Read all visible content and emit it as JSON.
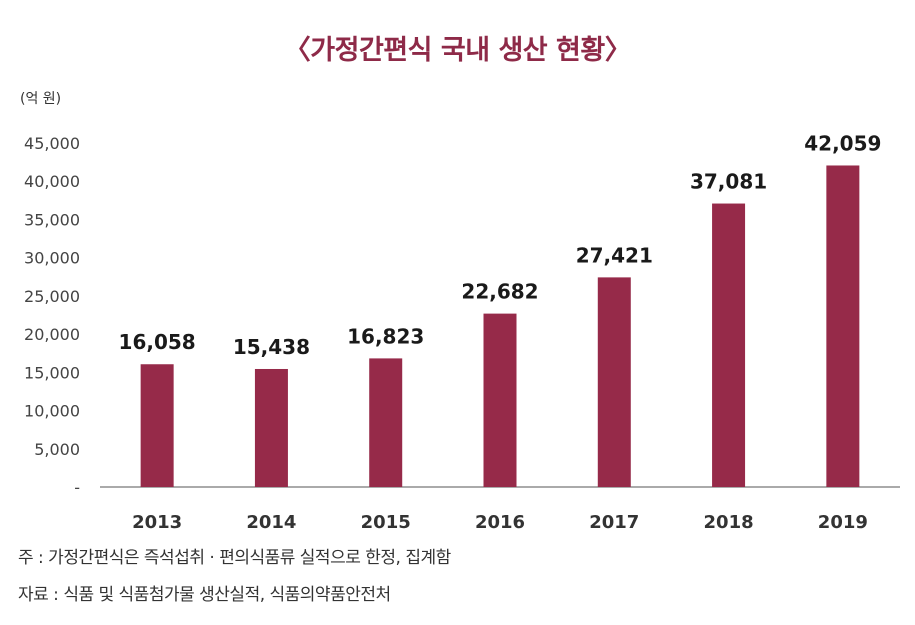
{
  "colors": {
    "bar": "#962a49",
    "title": "#8e2a48",
    "axis": "#555555"
  },
  "unit_label": "(억 원)",
  "notes": {
    "note1": "주 : 가정간편식은 즉석섭취 · 편의식품류 실적으로 한정, 집계함",
    "note2": "자료 : 식품 및 식품첨가물 생산실적, 식품의약품안전처"
  },
  "chart_data": {
    "type": "bar",
    "title": "〈가정간편식 국내 생산 현황〉",
    "categories": [
      "2013",
      "2014",
      "2015",
      "2016",
      "2017",
      "2018",
      "2019"
    ],
    "values": [
      16058,
      15438,
      16823,
      22682,
      27421,
      37081,
      42059
    ],
    "data_labels": [
      "16,058",
      "15,438",
      "16,823",
      "22,682",
      "27,421",
      "37,081",
      "42,059"
    ],
    "ylim": [
      0,
      45000
    ],
    "yticks": [
      0,
      5000,
      10000,
      15000,
      20000,
      25000,
      30000,
      35000,
      40000,
      45000
    ],
    "ytick_labels": [
      "-",
      "5,000",
      "10,000",
      "15,000",
      "20,000",
      "25,000",
      "30,000",
      "35,000",
      "40,000",
      "45,000"
    ],
    "xlabel": "",
    "ylabel": "(억 원)",
    "grid": false,
    "legend": "none"
  }
}
